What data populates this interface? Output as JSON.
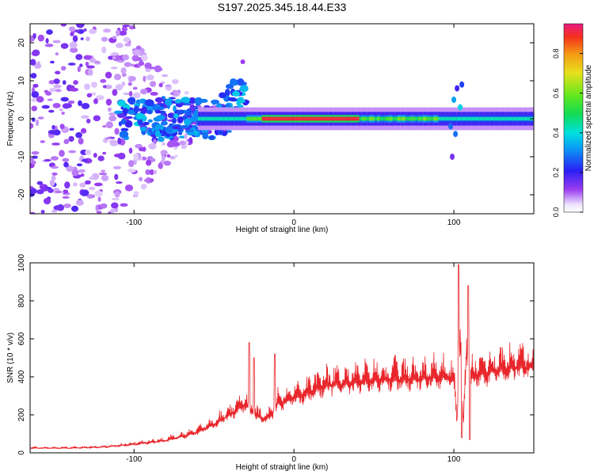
{
  "title": "S197.2025.345.18.44.E33",
  "colors": {
    "snr_line": "#e8262b",
    "axis": "#000000"
  },
  "chart_data": [
    {
      "type": "heatmap",
      "name": "spectrogram",
      "xlabel": "Height of straight line (km)",
      "ylabel": "Frequency (Hz)",
      "xlim": [
        -165,
        150
      ],
      "ylim": [
        -25,
        25
      ],
      "xticks": [
        -100,
        0,
        100
      ],
      "xtick_labels": [
        "-100",
        "0",
        "100"
      ],
      "yticks": [
        -20,
        -10,
        0,
        10,
        20
      ],
      "ytick_labels": [
        "-20",
        "-10",
        "0",
        "10",
        "20"
      ],
      "colorbar": {
        "label": "Normalized spectral amplitude",
        "range": [
          0,
          0.95
        ],
        "ticks": [
          0.0,
          0.2,
          0.4,
          0.6,
          0.8
        ],
        "tick_labels": [
          "0.0",
          "0.2",
          "0.4",
          "0.6",
          "0.8"
        ]
      },
      "features": {
        "noise_region_x": [
          -165,
          -60
        ],
        "tonal_line_freq_hz": 0,
        "tonal_line_x": [
          -60,
          150
        ],
        "peak_amplitude_x": [
          -20,
          40
        ],
        "event_near_x": 100
      }
    },
    {
      "type": "line",
      "name": "snr",
      "xlabel": "Height of straight line (km)",
      "ylabel": "SNR (10 * v/v)",
      "xlim": [
        -165,
        150
      ],
      "ylim": [
        0,
        1000
      ],
      "xticks": [
        -100,
        0,
        100
      ],
      "xtick_labels": [
        "-100",
        "0",
        "100"
      ],
      "yticks": [
        0,
        200,
        400,
        600,
        800,
        1000
      ],
      "ytick_labels": [
        "0",
        "200",
        "400",
        "600",
        "800",
        "1000"
      ],
      "series": [
        {
          "name": "SNR",
          "x": [
            -165,
            -140,
            -120,
            -100,
            -90,
            -80,
            -70,
            -60,
            -50,
            -40,
            -35,
            -30,
            -25,
            -20,
            -15,
            -10,
            -5,
            0,
            5,
            10,
            15,
            20,
            25,
            30,
            40,
            50,
            60,
            70,
            80,
            90,
            95,
            100,
            102,
            104,
            106,
            108,
            110,
            112,
            115,
            120,
            130,
            140,
            150
          ],
          "base": [
            25,
            25,
            30,
            45,
            55,
            65,
            85,
            110,
            150,
            200,
            230,
            260,
            200,
            180,
            190,
            260,
            270,
            290,
            300,
            320,
            340,
            350,
            360,
            360,
            370,
            380,
            385,
            385,
            390,
            395,
            400,
            380,
            170,
            600,
            150,
            560,
            380,
            400,
            410,
            420,
            440,
            450,
            450
          ],
          "spikes": [
            {
              "x": -28,
              "y": 580
            },
            {
              "x": -25,
              "y": 500
            },
            {
              "x": -12,
              "y": 520
            },
            {
              "x": 103,
              "y": 990
            },
            {
              "x": 105,
              "y": 80
            },
            {
              "x": 109,
              "y": 880
            },
            {
              "x": 110,
              "y": 70
            }
          ]
        }
      ]
    }
  ]
}
